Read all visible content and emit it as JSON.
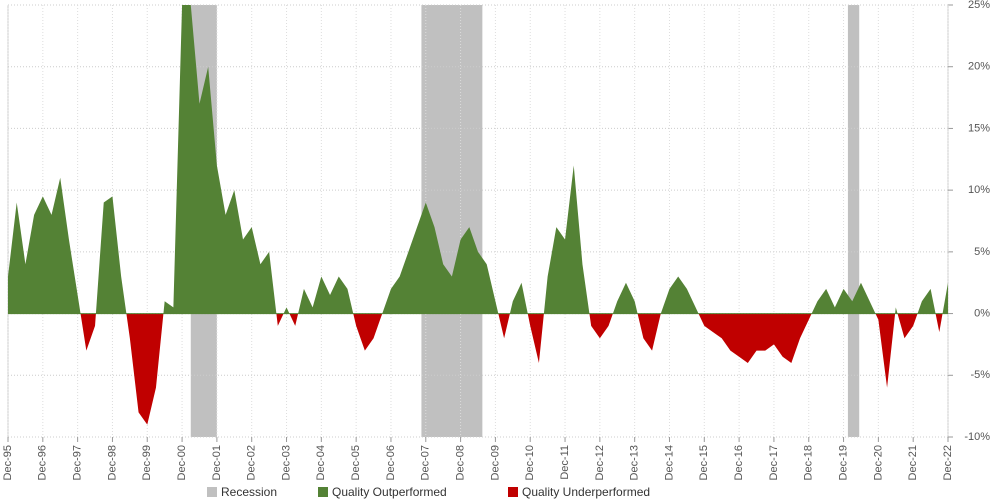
{
  "chart_data": {
    "type": "area",
    "categories": [
      "Dec-95",
      null,
      null,
      null,
      "Dec-96",
      null,
      null,
      null,
      "Dec-97",
      null,
      null,
      null,
      "Dec-98",
      null,
      null,
      null,
      "Dec-99",
      null,
      null,
      null,
      "Dec-00",
      null,
      null,
      null,
      "Dec-01",
      null,
      null,
      null,
      "Dec-02",
      null,
      null,
      null,
      "Dec-03",
      null,
      null,
      null,
      "Dec-04",
      null,
      null,
      null,
      "Dec-05",
      null,
      null,
      null,
      "Dec-06",
      null,
      null,
      null,
      "Dec-07",
      null,
      null,
      null,
      "Dec-08",
      null,
      null,
      null,
      "Dec-09",
      null,
      null,
      null,
      "Dec-10",
      null,
      null,
      null,
      "Dec-11",
      null,
      null,
      null,
      "Dec-12",
      null,
      null,
      null,
      "Dec-13",
      null,
      null,
      null,
      "Dec-14",
      null,
      null,
      null,
      "Dec-15",
      null,
      null,
      null,
      "Dec-16",
      null,
      null,
      null,
      "Dec-17",
      null,
      null,
      null,
      "Dec-18",
      null,
      null,
      null,
      "Dec-19",
      null,
      null,
      null,
      "Dec-20",
      null,
      null,
      null,
      "Dec-21",
      null,
      null,
      null,
      "Dec-22"
    ],
    "values": [
      3,
      9,
      4,
      8,
      9.5,
      8,
      11,
      6,
      1.5,
      -3,
      -1,
      9,
      9.5,
      3,
      -2,
      -8,
      -9,
      -6,
      1,
      0.5,
      25,
      25,
      17,
      20,
      12,
      8,
      10,
      6,
      7,
      4,
      5,
      -1,
      0.5,
      -1,
      2,
      0.5,
      3,
      1.5,
      3,
      2,
      -1,
      -3,
      -2,
      0,
      2,
      3,
      5,
      7,
      9,
      7,
      4,
      3,
      6,
      7,
      5,
      4,
      1,
      -2,
      1,
      2.5,
      -1,
      -4,
      3,
      7,
      6,
      12,
      4,
      -1,
      -2,
      -1,
      1,
      2.5,
      1,
      -2,
      -3,
      0,
      2,
      3,
      2,
      0.5,
      -1,
      -1.5,
      -2,
      -3,
      -3.5,
      -4,
      -3,
      -3,
      -2.5,
      -3.5,
      -4,
      -2,
      -0.5,
      1,
      2,
      0.5,
      2,
      1,
      2.5,
      1,
      -0.5,
      -6,
      0.5,
      -2,
      -1,
      1,
      2,
      -1.5,
      2.5
    ],
    "recessions": [
      {
        "start": 21,
        "end": 24
      },
      {
        "start": 47.5,
        "end": 54.5
      },
      {
        "start": 96.5,
        "end": 97.8
      }
    ],
    "legend": [
      {
        "name": "Recession",
        "color": "#c0c0c0"
      },
      {
        "name": "Quality Outperformed",
        "color": "#548235"
      },
      {
        "name": "Quality Underperformed",
        "color": "#c00000"
      }
    ],
    "ylim": [
      -10,
      25
    ],
    "yticks": [
      {
        "value": -10,
        "label": "-10%"
      },
      {
        "value": -5,
        "label": "-5%"
      },
      {
        "value": 0,
        "label": "0%"
      },
      {
        "value": 5,
        "label": "5%"
      },
      {
        "value": 10,
        "label": "10%"
      },
      {
        "value": 15,
        "label": "15%"
      },
      {
        "value": 20,
        "label": "20%"
      },
      {
        "value": 25,
        "label": "25%"
      }
    ],
    "grid": true
  }
}
